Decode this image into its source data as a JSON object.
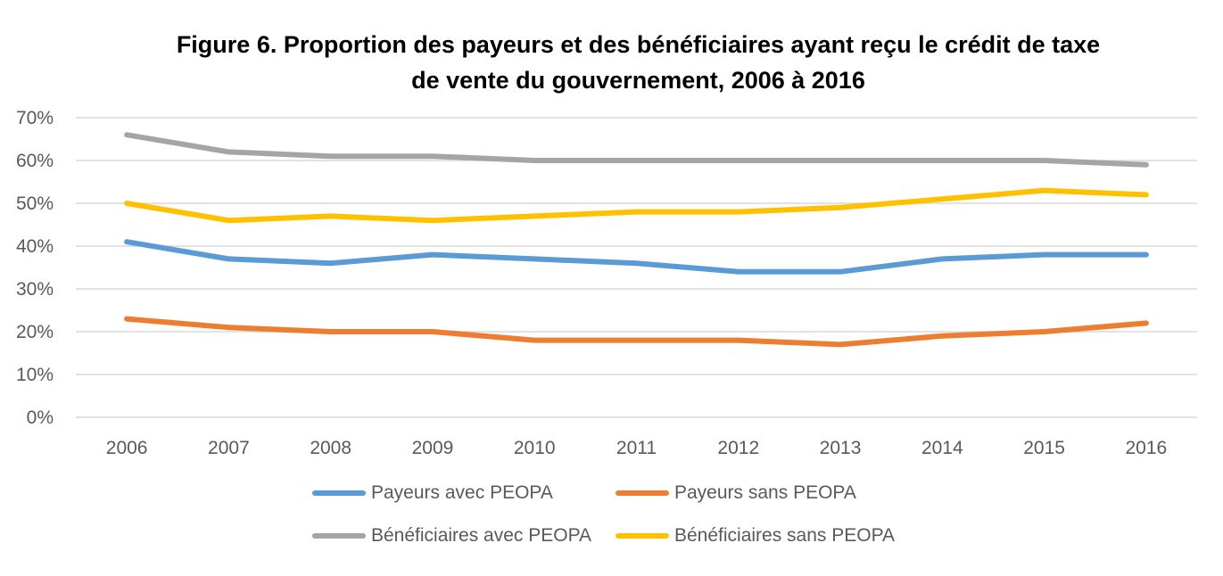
{
  "chart_data": {
    "type": "line",
    "title_lines": [
      "Figure 6. Proportion des payeurs et des bénéficiaires ayant reçu le crédit de taxe",
      "de vente du gouvernement, 2006 à 2016"
    ],
    "x": [
      "2006",
      "2007",
      "2008",
      "2009",
      "2010",
      "2011",
      "2012",
      "2013",
      "2014",
      "2015",
      "2016"
    ],
    "ylim": [
      0,
      70
    ],
    "yticks": [
      0,
      10,
      20,
      30,
      40,
      50,
      60,
      70
    ],
    "ytick_labels": [
      "0%",
      "10%",
      "20%",
      "30%",
      "40%",
      "50%",
      "60%",
      "70%"
    ],
    "grid": true,
    "legend_position": "bottom",
    "series": [
      {
        "name": "Payeurs avec PEOPA",
        "color": "#5B9BD5",
        "values": [
          41,
          37,
          36,
          38,
          37,
          36,
          34,
          34,
          37,
          38,
          38
        ]
      },
      {
        "name": "Payeurs sans PEOPA",
        "color": "#ED7D31",
        "values": [
          23,
          21,
          20,
          20,
          18,
          18,
          18,
          17,
          19,
          20,
          22
        ]
      },
      {
        "name": "Bénéficiaires avec PEOPA",
        "color": "#A5A5A5",
        "values": [
          66,
          62,
          61,
          61,
          60,
          60,
          60,
          60,
          60,
          60,
          59
        ]
      },
      {
        "name": "Bénéficiaires sans PEOPA",
        "color": "#FFC000",
        "values": [
          50,
          46,
          47,
          46,
          47,
          48,
          48,
          49,
          51,
          53,
          52
        ]
      }
    ]
  }
}
